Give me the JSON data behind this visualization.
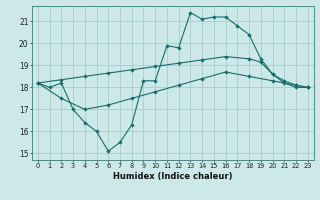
{
  "xlabel": "Humidex (Indice chaleur)",
  "bg_color": "#cce8e8",
  "grid_color": "#aacccc",
  "line_color": "#1a6b6b",
  "xlim": [
    -0.5,
    23.5
  ],
  "ylim": [
    14.7,
    21.7
  ],
  "yticks": [
    15,
    16,
    17,
    18,
    19,
    20,
    21
  ],
  "xticks": [
    0,
    1,
    2,
    3,
    4,
    5,
    6,
    7,
    8,
    9,
    10,
    11,
    12,
    13,
    14,
    15,
    16,
    17,
    18,
    19,
    20,
    21,
    22,
    23
  ],
  "curve1_x": [
    0,
    1,
    2,
    3,
    4,
    5,
    6,
    7,
    8,
    9,
    10,
    11,
    12,
    13,
    14,
    15,
    16,
    17,
    18,
    19,
    20,
    21,
    22,
    23
  ],
  "curve1_y": [
    18.2,
    18.0,
    18.2,
    17.0,
    16.4,
    16.0,
    15.1,
    15.5,
    16.3,
    18.3,
    18.3,
    19.9,
    19.8,
    21.4,
    21.1,
    21.2,
    21.2,
    20.8,
    20.4,
    19.3,
    18.6,
    18.2,
    18.0,
    18.0
  ],
  "curve2_x": [
    0,
    2,
    4,
    6,
    8,
    10,
    12,
    14,
    16,
    18,
    19,
    20,
    21,
    22,
    23
  ],
  "curve2_y": [
    18.2,
    18.35,
    18.5,
    18.65,
    18.8,
    18.95,
    19.1,
    19.25,
    19.4,
    19.3,
    19.15,
    18.6,
    18.3,
    18.1,
    18.0
  ],
  "curve3_x": [
    0,
    2,
    4,
    6,
    8,
    10,
    12,
    14,
    16,
    18,
    20,
    22,
    23
  ],
  "curve3_y": [
    18.2,
    17.5,
    17.0,
    17.2,
    17.5,
    17.8,
    18.1,
    18.4,
    18.7,
    18.5,
    18.3,
    18.1,
    18.0
  ]
}
